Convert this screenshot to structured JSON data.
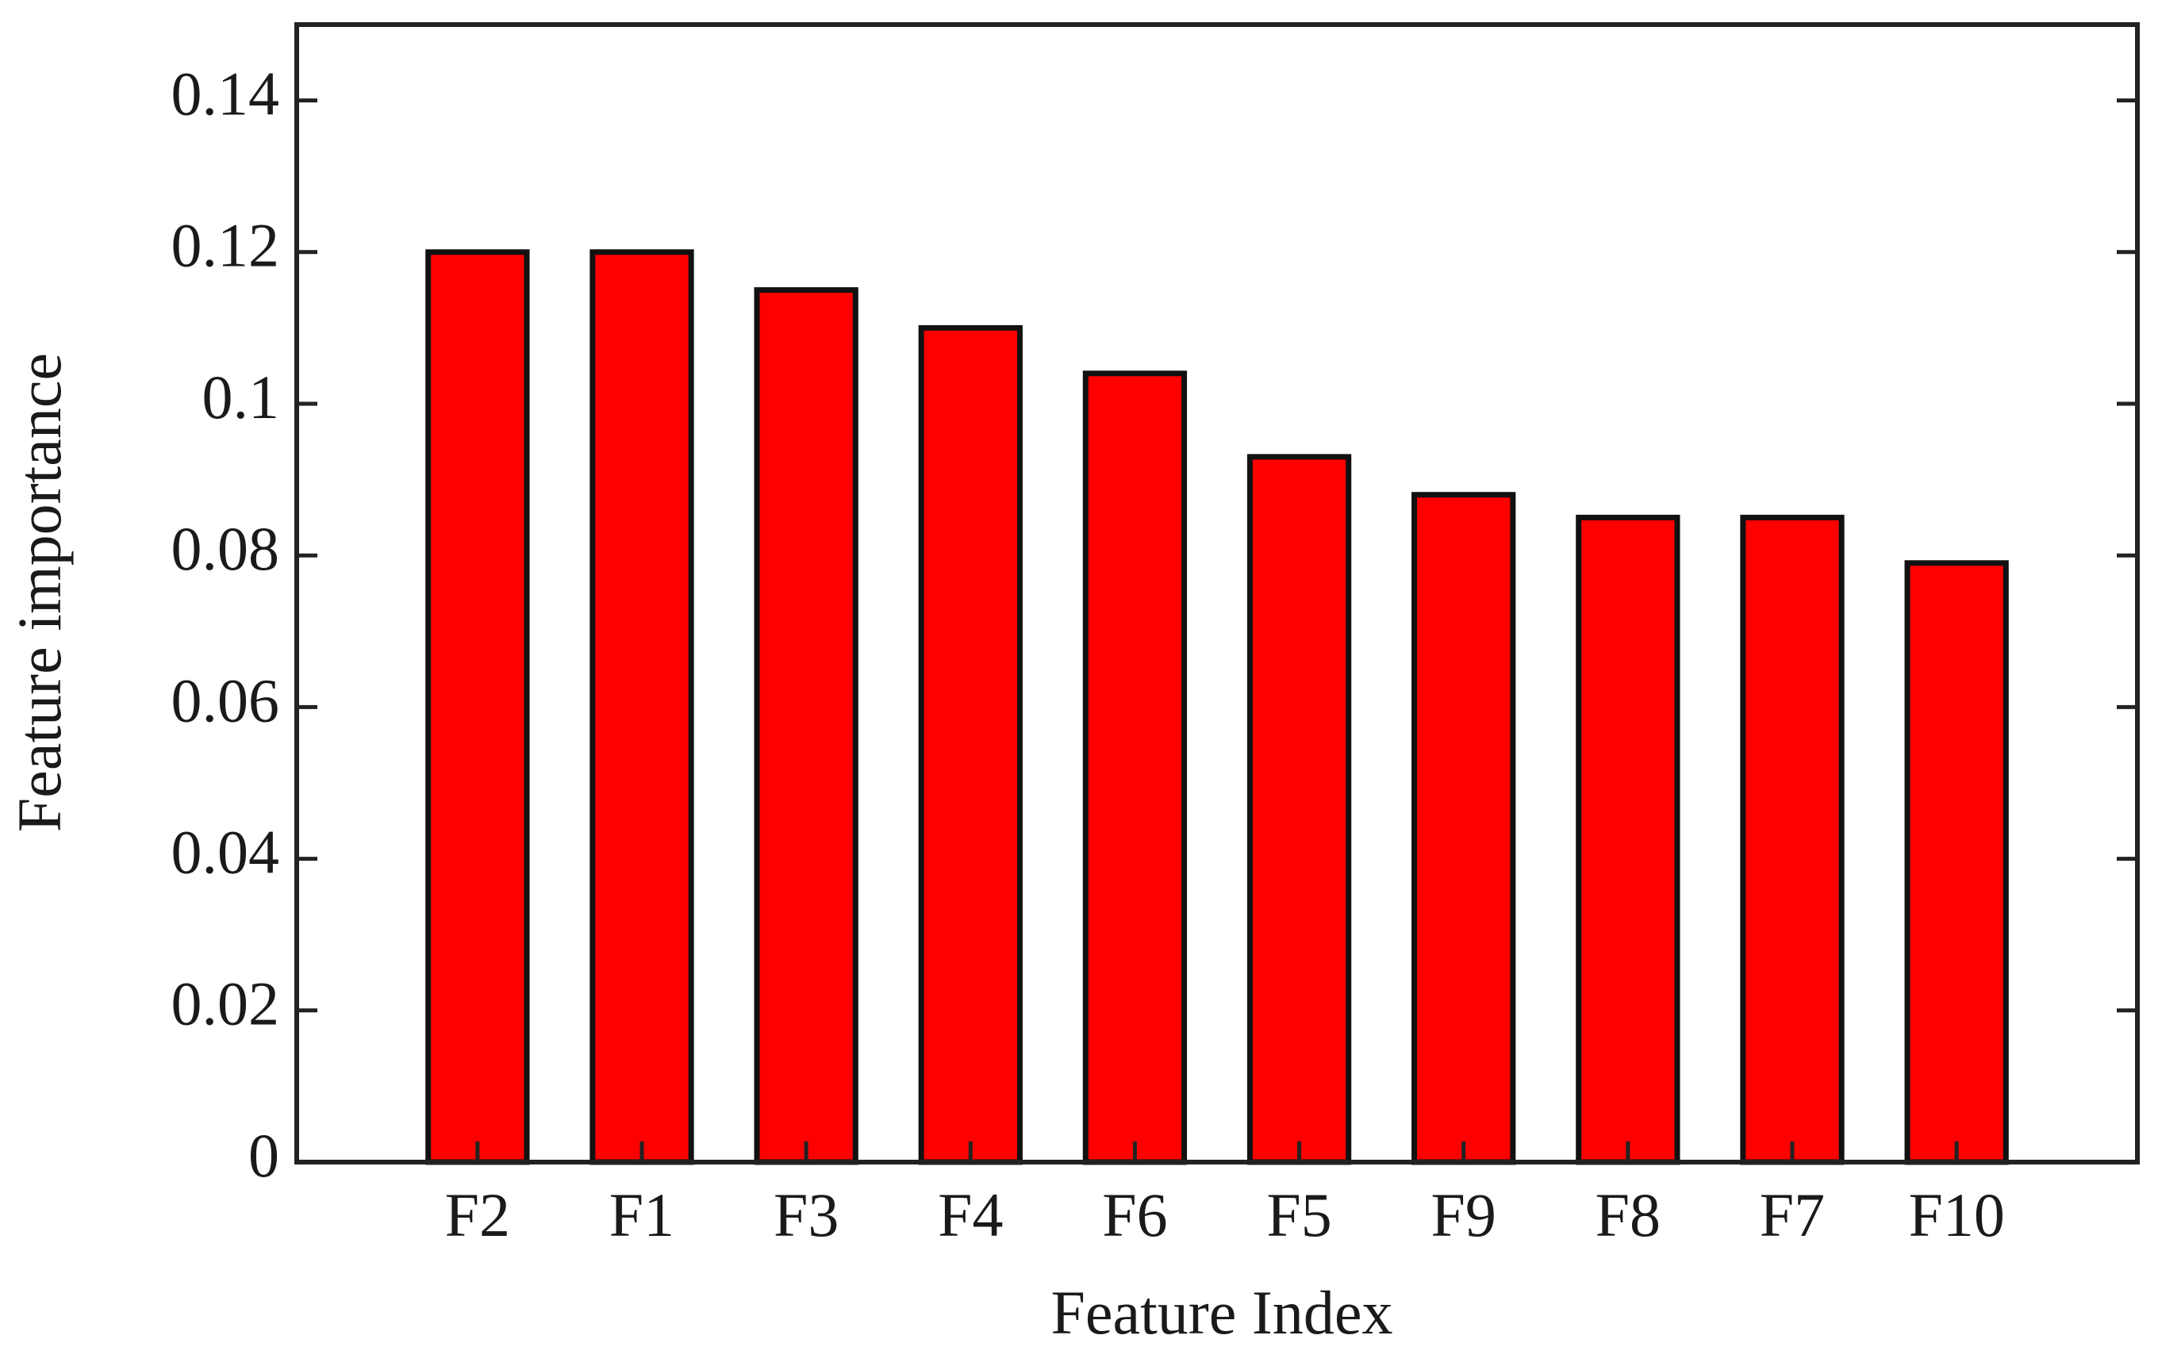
{
  "chart_data": {
    "type": "bar",
    "xlabel": "Feature Index",
    "ylabel": "Feature importance",
    "categories": [
      "F2",
      "F1",
      "F3",
      "F4",
      "F6",
      "F5",
      "F9",
      "F8",
      "F7",
      "F10"
    ],
    "values": [
      0.12,
      0.12,
      0.115,
      0.11,
      0.104,
      0.093,
      0.088,
      0.085,
      0.085,
      0.079
    ],
    "color": "#ff0000",
    "ylim": [
      0,
      0.15
    ],
    "yticks": [
      0,
      0.02,
      0.04,
      0.06,
      0.08,
      0.1,
      0.12,
      0.14
    ],
    "grid": false
  }
}
